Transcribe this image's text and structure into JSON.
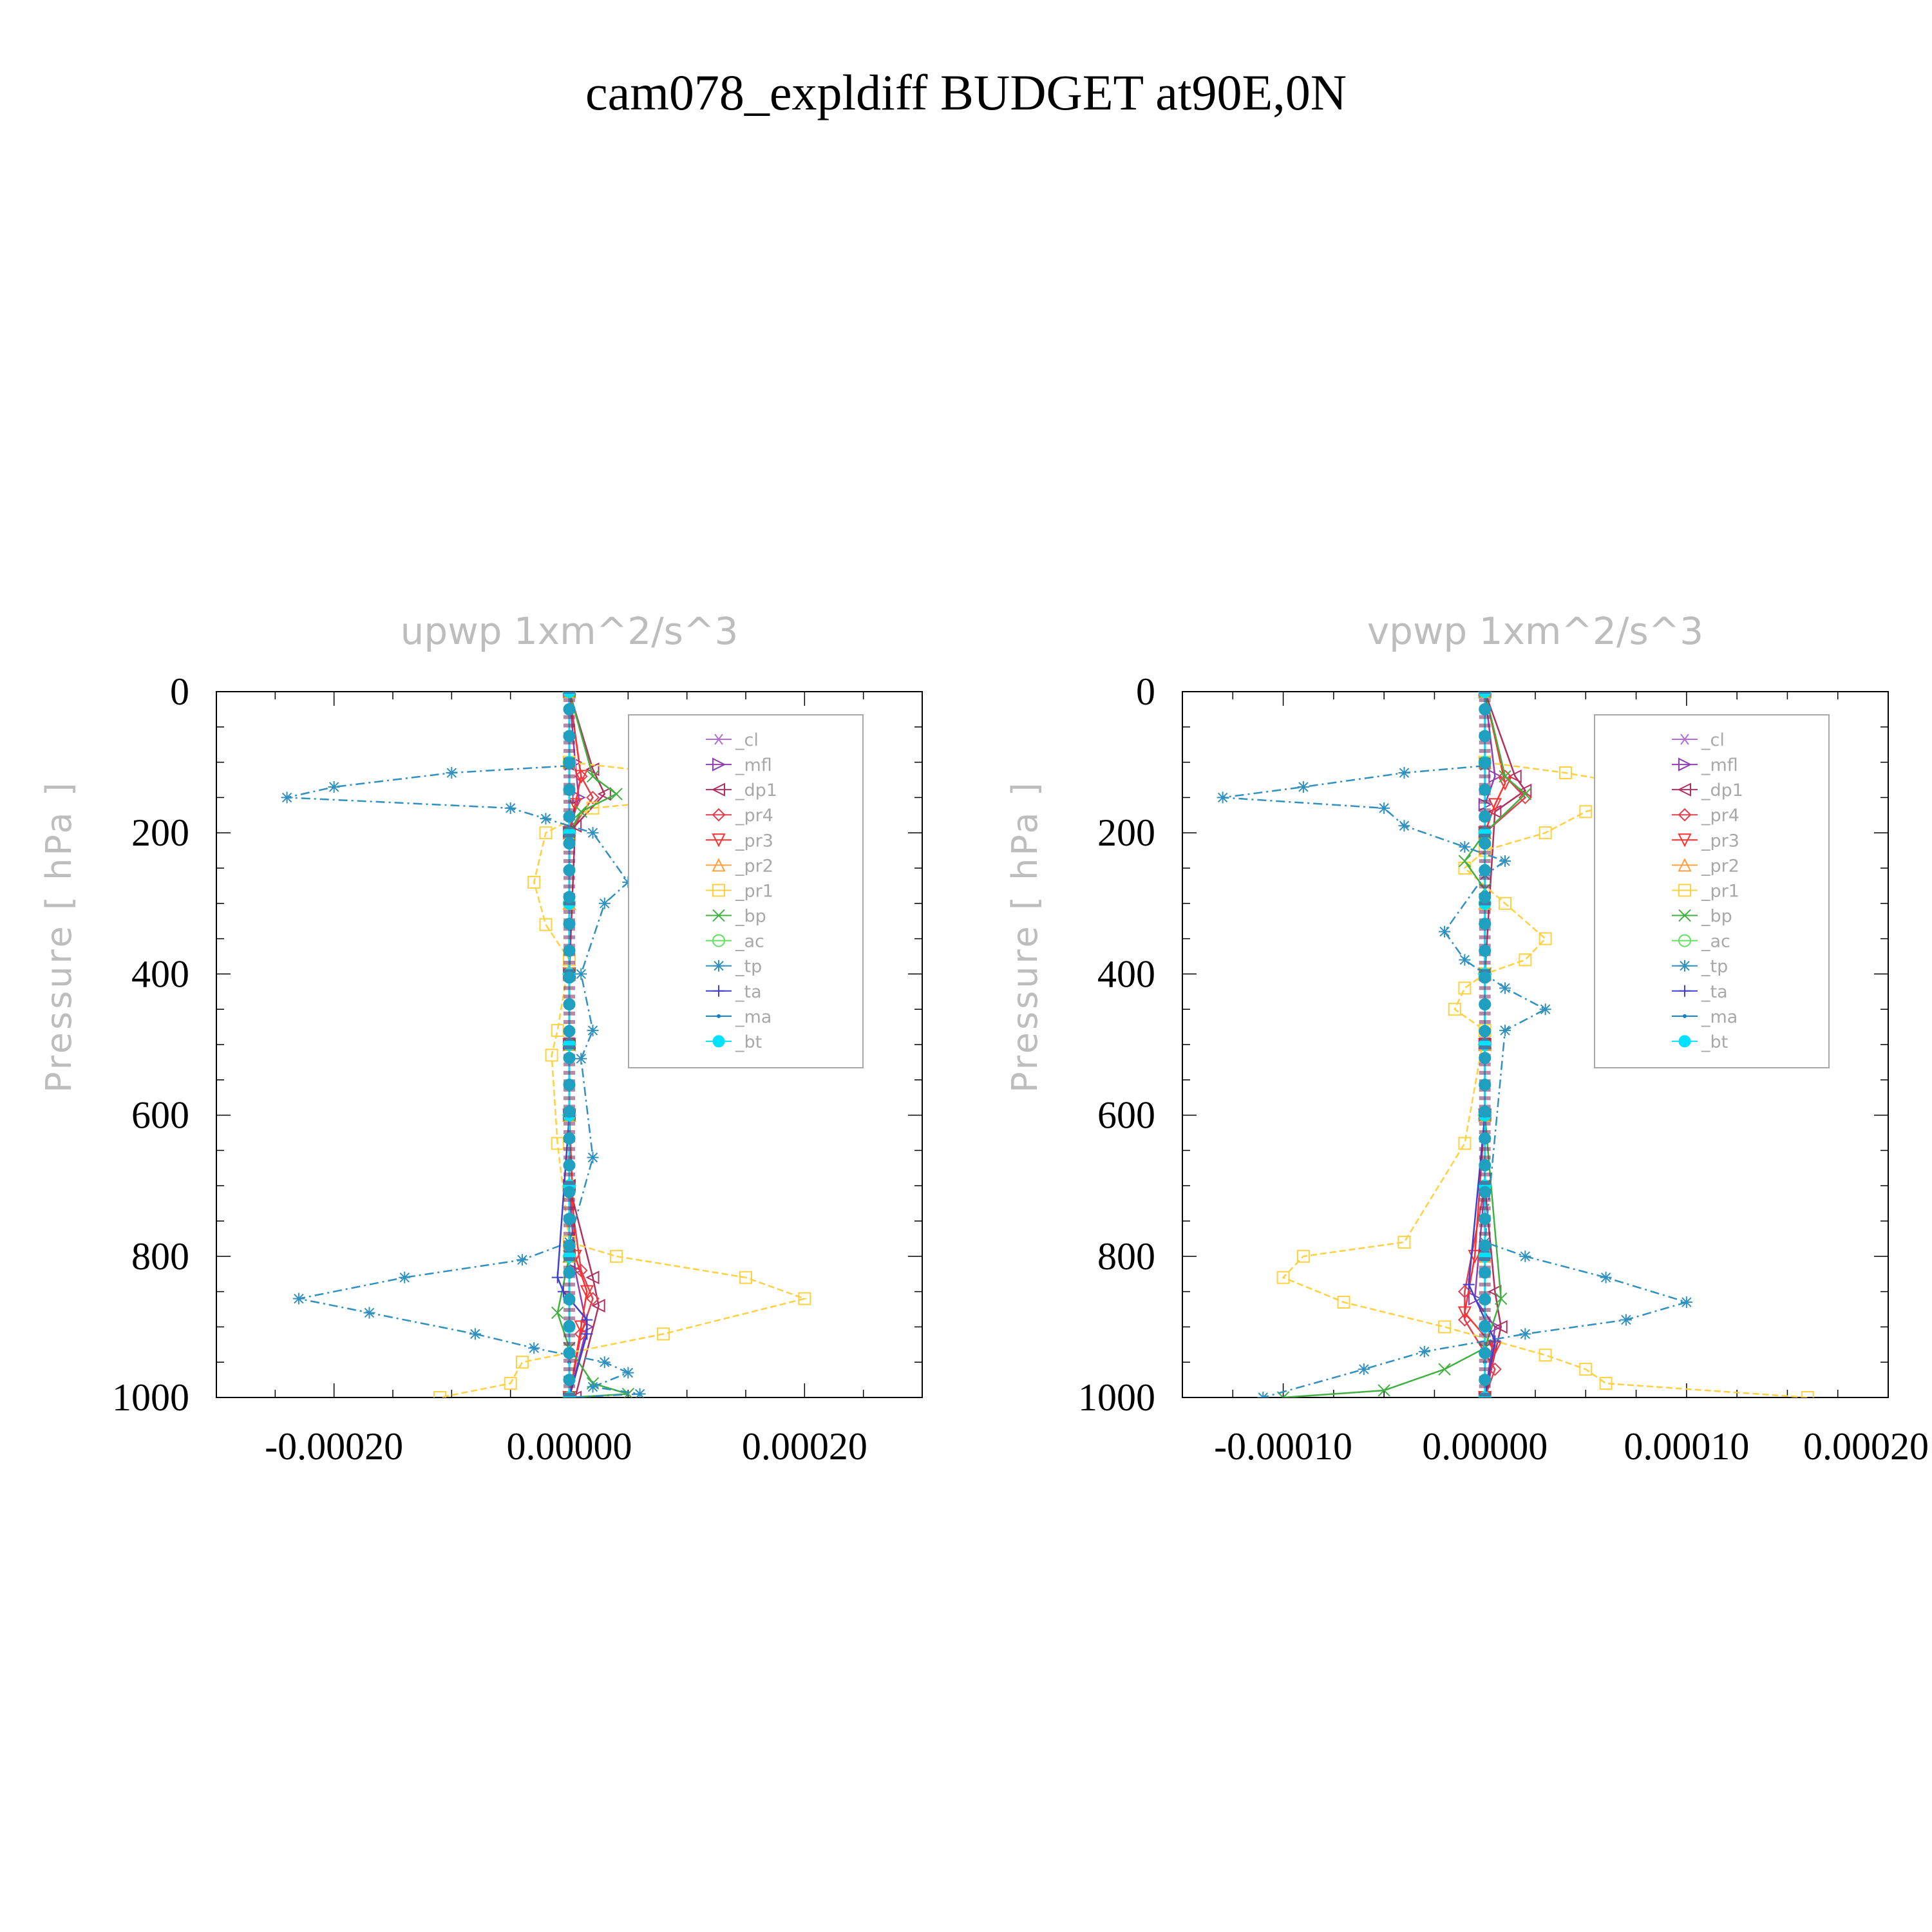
{
  "title": "cam078_expldiff  BUDGET at90E,0N",
  "chart_data": [
    {
      "type": "line",
      "title": "upwp    1xm^2/s^3",
      "ylabel": "Pressure  [ hPa ]",
      "xlim": [
        -0.0003,
        0.0003
      ],
      "ylim": [
        1000,
        0
      ],
      "yticks": [
        "0",
        "200",
        "400",
        "600",
        "800",
        "1000"
      ],
      "xticks": [
        "-0.00020",
        "0.00000",
        "0.00020"
      ],
      "xtick_values": [
        -0.0002,
        0,
        0.0002
      ],
      "legend_position": "top-right",
      "series": [
        {
          "name": "_cl",
          "color": "#b070d0",
          "marker": "star",
          "x": [
            0,
            0,
            0,
            0,
            0,
            0,
            0,
            0,
            0,
            0,
            0
          ],
          "y": [
            0,
            100,
            200,
            300,
            400,
            500,
            600,
            700,
            800,
            900,
            1000
          ]
        },
        {
          "name": "_mfl",
          "color": "#9040b0",
          "marker": "tri-right",
          "x": [
            0,
            5e-06,
            8e-06,
            0,
            0,
            0,
            0,
            0,
            5e-06,
            1.5e-05,
            0
          ],
          "y": [
            0,
            100,
            150,
            200,
            400,
            500,
            600,
            700,
            820,
            900,
            1000
          ]
        },
        {
          "name": "_dp1",
          "color": "#b03060",
          "marker": "tri-left",
          "x": [
            0,
            2e-05,
            3e-05,
            5e-06,
            0,
            0,
            0,
            0,
            2e-05,
            2.5e-05,
            5e-06
          ],
          "y": [
            0,
            110,
            145,
            190,
            400,
            500,
            600,
            700,
            830,
            870,
            1000
          ]
        },
        {
          "name": "_pr4",
          "color": "#e04050",
          "marker": "diamond",
          "x": [
            0,
            1e-05,
            2e-05,
            0,
            0,
            0,
            0,
            0,
            1e-05,
            2e-05,
            1e-05,
            0
          ],
          "y": [
            0,
            120,
            150,
            200,
            400,
            500,
            600,
            700,
            820,
            860,
            910,
            1000
          ]
        },
        {
          "name": "_pr3",
          "color": "#ff3030",
          "marker": "tri-down",
          "x": [
            0,
            1e-05,
            5e-06,
            0,
            0,
            0,
            0,
            5e-06,
            1.5e-05,
            1e-05,
            0
          ],
          "y": [
            0,
            120,
            160,
            200,
            400,
            500,
            600,
            800,
            850,
            900,
            1000
          ]
        },
        {
          "name": "_pr2",
          "color": "#ffa040",
          "marker": "tri-up",
          "x": [
            0,
            0,
            0,
            0,
            0,
            0,
            0,
            0,
            0,
            0
          ],
          "y": [
            0,
            100,
            200,
            300,
            400,
            500,
            600,
            700,
            800,
            1000
          ]
        },
        {
          "name": "_pr1",
          "color": "#ffd040",
          "marker": "square",
          "x": [
            0,
            8e-05,
            0.00018,
            2e-05,
            -2e-05,
            -3e-05,
            -2e-05,
            0,
            -1e-05,
            -1.5e-05,
            -1e-05,
            0,
            4e-05,
            0.00015,
            0.0002,
            8e-05,
            -4e-05,
            -5e-05,
            -0.00011
          ],
          "y": [
            100,
            115,
            140,
            165,
            200,
            270,
            330,
            380,
            480,
            515,
            640,
            780,
            800,
            830,
            860,
            910,
            950,
            980,
            1000
          ]
        },
        {
          "name": "_bp",
          "color": "#40b040",
          "marker": "x",
          "x": [
            0,
            2e-05,
            4e-05,
            1e-05,
            0,
            0,
            0,
            0,
            0,
            -1e-05,
            0,
            2e-05,
            5e-05,
            0
          ],
          "y": [
            0,
            120,
            145,
            170,
            200,
            400,
            500,
            600,
            800,
            880,
            930,
            980,
            995,
            1000
          ]
        },
        {
          "name": "_ac",
          "color": "#60e060",
          "marker": "circle",
          "x": [
            0,
            0,
            0,
            0,
            0,
            0,
            0,
            0,
            0,
            0
          ],
          "y": [
            0,
            100,
            200,
            300,
            400,
            500,
            600,
            700,
            800,
            1000
          ]
        },
        {
          "name": "_tp",
          "color": "#3090c0",
          "marker": "asterisk",
          "x": [
            0,
            -0.0001,
            -0.0002,
            -0.00024,
            -5e-05,
            -2e-05,
            2e-05,
            5e-05,
            3e-05,
            1e-05,
            2e-05,
            1e-05,
            2e-05,
            0,
            -4e-05,
            -0.00014,
            -0.00023,
            -0.00017,
            -8e-05,
            -3e-05,
            3e-05,
            5e-05,
            2e-05,
            6e-05,
            0
          ],
          "y": [
            105,
            115,
            135,
            150,
            165,
            180,
            200,
            270,
            300,
            400,
            480,
            520,
            660,
            780,
            805,
            830,
            860,
            880,
            910,
            930,
            950,
            965,
            985,
            995,
            1000
          ]
        },
        {
          "name": "_ta",
          "color": "#4040d0",
          "marker": "plus",
          "x": [
            0,
            0,
            0,
            0,
            -1e-05,
            -5e-06,
            1.5e-05,
            1.5e-05,
            0
          ],
          "y": [
            0,
            200,
            400,
            600,
            830,
            850,
            890,
            910,
            1000
          ]
        },
        {
          "name": "_ma",
          "color": "#1080c0",
          "marker": "dot",
          "x": [
            0,
            0,
            0,
            0,
            0,
            0,
            0,
            0
          ],
          "y": [
            0,
            200,
            400,
            600,
            800,
            900,
            950,
            1000
          ]
        },
        {
          "name": "_bt",
          "color": "#00e0ff",
          "marker": "filled-circle",
          "x": [
            0,
            0,
            0,
            0,
            0,
            0,
            0,
            0,
            0,
            0,
            0
          ],
          "y": [
            0,
            100,
            200,
            300,
            400,
            500,
            600,
            700,
            800,
            900,
            1000
          ]
        }
      ]
    },
    {
      "type": "line",
      "title": "vpwp    1xm^2/s^3",
      "ylabel": "Pressure  [ hPa ]",
      "xlim": [
        -0.00015,
        0.0002
      ],
      "ylim": [
        1000,
        0
      ],
      "yticks": [
        "0",
        "200",
        "400",
        "600",
        "800",
        "1000"
      ],
      "xticks": [
        "-0.00010",
        "0.00000",
        "0.00010",
        "0.00020"
      ],
      "xtick_values": [
        -0.0001,
        0,
        0.0001,
        0.0002
      ],
      "legend_position": "top-right",
      "series": [
        {
          "name": "_cl",
          "color": "#b070d0",
          "marker": "star",
          "x": [
            0,
            0,
            0,
            0,
            0,
            0,
            0,
            0,
            0,
            0,
            0
          ],
          "y": [
            0,
            100,
            200,
            300,
            400,
            500,
            600,
            700,
            800,
            900,
            1000
          ]
        },
        {
          "name": "_mfl",
          "color": "#9040b0",
          "marker": "tri-right",
          "x": [
            0,
            5e-06,
            0,
            0,
            0,
            0,
            0,
            0,
            -5e-06,
            5e-06,
            0
          ],
          "y": [
            0,
            120,
            160,
            200,
            400,
            500,
            600,
            700,
            860,
            900,
            1000
          ]
        },
        {
          "name": "_dp1",
          "color": "#b03060",
          "marker": "tri-left",
          "x": [
            0,
            1.5e-05,
            2e-05,
            5e-06,
            0,
            0,
            0,
            0,
            5e-06,
            8e-06,
            0
          ],
          "y": [
            0,
            120,
            140,
            170,
            400,
            500,
            600,
            700,
            850,
            900,
            1000
          ]
        },
        {
          "name": "_pr4",
          "color": "#e04050",
          "marker": "diamond",
          "x": [
            0,
            1e-05,
            2e-05,
            0,
            0,
            0,
            0,
            0,
            -1e-05,
            -1e-05,
            5e-06,
            0
          ],
          "y": [
            0,
            120,
            150,
            200,
            400,
            500,
            600,
            700,
            850,
            890,
            960,
            1000
          ]
        },
        {
          "name": "_pr3",
          "color": "#ff3030",
          "marker": "tri-down",
          "x": [
            0,
            1e-05,
            5e-06,
            0,
            0,
            0,
            0,
            -5e-06,
            -1e-05,
            5e-06,
            0
          ],
          "y": [
            0,
            130,
            160,
            200,
            400,
            500,
            600,
            800,
            880,
            930,
            1000
          ]
        },
        {
          "name": "_pr2",
          "color": "#ffa040",
          "marker": "tri-up",
          "x": [
            0,
            0,
            0,
            0,
            0,
            0,
            0,
            0,
            0,
            0
          ],
          "y": [
            0,
            100,
            200,
            300,
            400,
            500,
            600,
            700,
            800,
            1000
          ]
        },
        {
          "name": "_pr1",
          "color": "#ffd040",
          "marker": "square",
          "x": [
            0,
            4e-05,
            9e-05,
            5e-05,
            3e-05,
            0,
            -1e-05,
            1e-05,
            3e-05,
            2e-05,
            0,
            -1e-05,
            -1.5e-05,
            0,
            -1e-05,
            -4e-05,
            -9e-05,
            -0.0001,
            -7e-05,
            -2e-05,
            3e-05,
            5e-05,
            6e-05,
            0.00016
          ],
          "y": [
            100,
            115,
            140,
            170,
            200,
            225,
            250,
            300,
            350,
            380,
            400,
            420,
            450,
            480,
            640,
            780,
            800,
            830,
            865,
            900,
            940,
            960,
            980,
            1000
          ]
        },
        {
          "name": "_bp",
          "color": "#40b040",
          "marker": "x",
          "x": [
            0,
            1e-05,
            2e-05,
            0,
            -1e-05,
            0,
            0,
            0,
            8e-06,
            0,
            -2e-05,
            -5e-05,
            -0.0001
          ],
          "y": [
            0,
            120,
            145,
            200,
            240,
            280,
            400,
            600,
            860,
            930,
            960,
            990,
            1000
          ]
        },
        {
          "name": "_ac",
          "color": "#60e060",
          "marker": "circle",
          "x": [
            0,
            0,
            0,
            0,
            0,
            0,
            0,
            0,
            0,
            0
          ],
          "y": [
            0,
            100,
            200,
            300,
            400,
            500,
            600,
            700,
            800,
            1000
          ]
        },
        {
          "name": "_tp",
          "color": "#3090c0",
          "marker": "asterisk",
          "x": [
            0,
            -4e-05,
            -9e-05,
            -0.00013,
            -5e-05,
            -4e-05,
            -1e-05,
            1e-05,
            0,
            -2e-05,
            -1e-05,
            1e-05,
            3e-05,
            1e-05,
            0,
            2e-05,
            6e-05,
            0.0001,
            7e-05,
            2e-05,
            -3e-05,
            -6e-05,
            -0.00011
          ],
          "y": [
            105,
            115,
            135,
            150,
            165,
            190,
            220,
            240,
            260,
            340,
            380,
            420,
            450,
            480,
            780,
            800,
            830,
            865,
            890,
            910,
            935,
            960,
            1000
          ]
        },
        {
          "name": "_ta",
          "color": "#4040d0",
          "marker": "plus",
          "x": [
            0,
            0,
            0,
            0,
            -8e-06,
            5e-06,
            0
          ],
          "y": [
            0,
            200,
            400,
            600,
            840,
            920,
            1000
          ]
        },
        {
          "name": "_ma",
          "color": "#1080c0",
          "marker": "dot",
          "x": [
            0,
            0,
            0,
            0,
            0,
            0,
            0,
            0
          ],
          "y": [
            0,
            200,
            400,
            600,
            800,
            900,
            950,
            1000
          ]
        },
        {
          "name": "_bt",
          "color": "#00e0ff",
          "marker": "filled-circle",
          "x": [
            0,
            0,
            0,
            0,
            0,
            0,
            0,
            0,
            0,
            0,
            0
          ],
          "y": [
            0,
            100,
            200,
            300,
            400,
            500,
            600,
            700,
            800,
            900,
            1000
          ]
        }
      ]
    }
  ]
}
